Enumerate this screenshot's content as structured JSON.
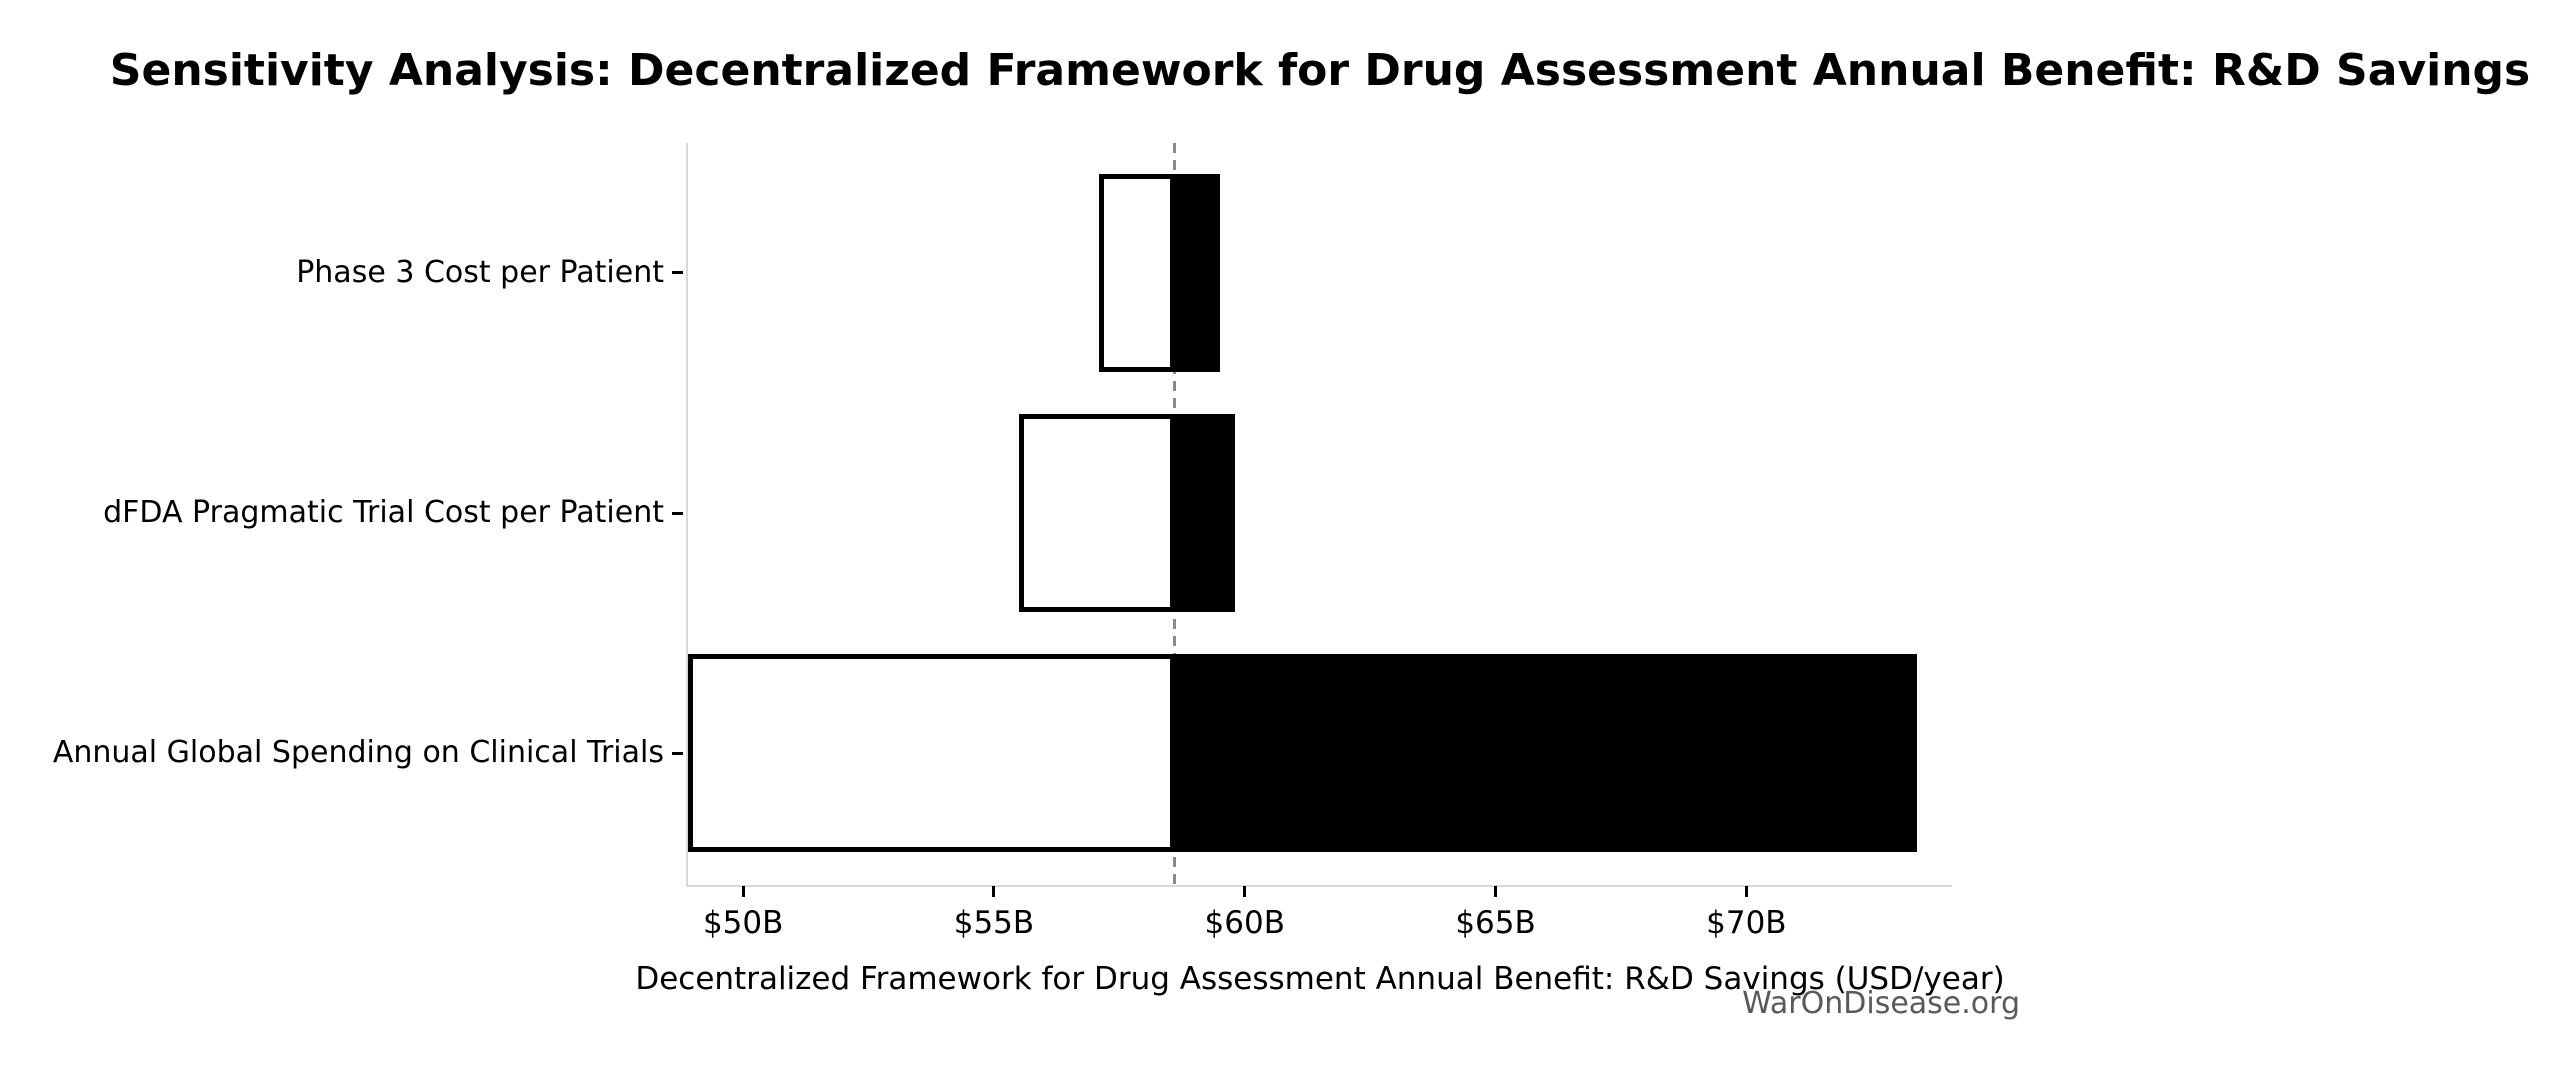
{
  "chart_data": {
    "type": "bar",
    "orientation": "horizontal",
    "variant": "tornado-sensitivity",
    "title": "Sensitivity Analysis: Decentralized Framework for Drug Assessment Annual Benefit: R&D Savings",
    "xlabel": "Decentralized Framework for Drug Assessment Annual Benefit: R&D Savings (USD/year)",
    "ylabel": "",
    "watermark": "WarOnDisease.org",
    "baseline_value": 58.6,
    "xlim": [
      48.9,
      74.1
    ],
    "grid": false,
    "legend": false,
    "categories": [
      "Phase 3 Cost per Patient",
      "dFDA Pragmatic Trial Cost per Patient",
      "Annual Global Spending on Clinical Trials"
    ],
    "series": [
      {
        "name": "low_estimate",
        "values": [
          57.1,
          55.5,
          48.9
        ]
      },
      {
        "name": "high_estimate",
        "values": [
          59.5,
          59.8,
          73.4
        ]
      }
    ],
    "x_ticks": [
      {
        "value": 50,
        "label": "$50B"
      },
      {
        "value": 55,
        "label": "$55B"
      },
      {
        "value": 60,
        "label": "$60B"
      },
      {
        "value": 65,
        "label": "$65B"
      },
      {
        "value": 70,
        "label": "$70B"
      }
    ],
    "units": "USD billions per year",
    "colors": {
      "low_fill": "#ffffff",
      "high_fill": "#000000",
      "bar_edge": "#000000",
      "baseline_line": "#8a8a8a",
      "spine": "#d9d9d9",
      "tick_mark": "#000000",
      "text": "#000000",
      "watermark": "#595959",
      "background": "#ffffff"
    }
  }
}
